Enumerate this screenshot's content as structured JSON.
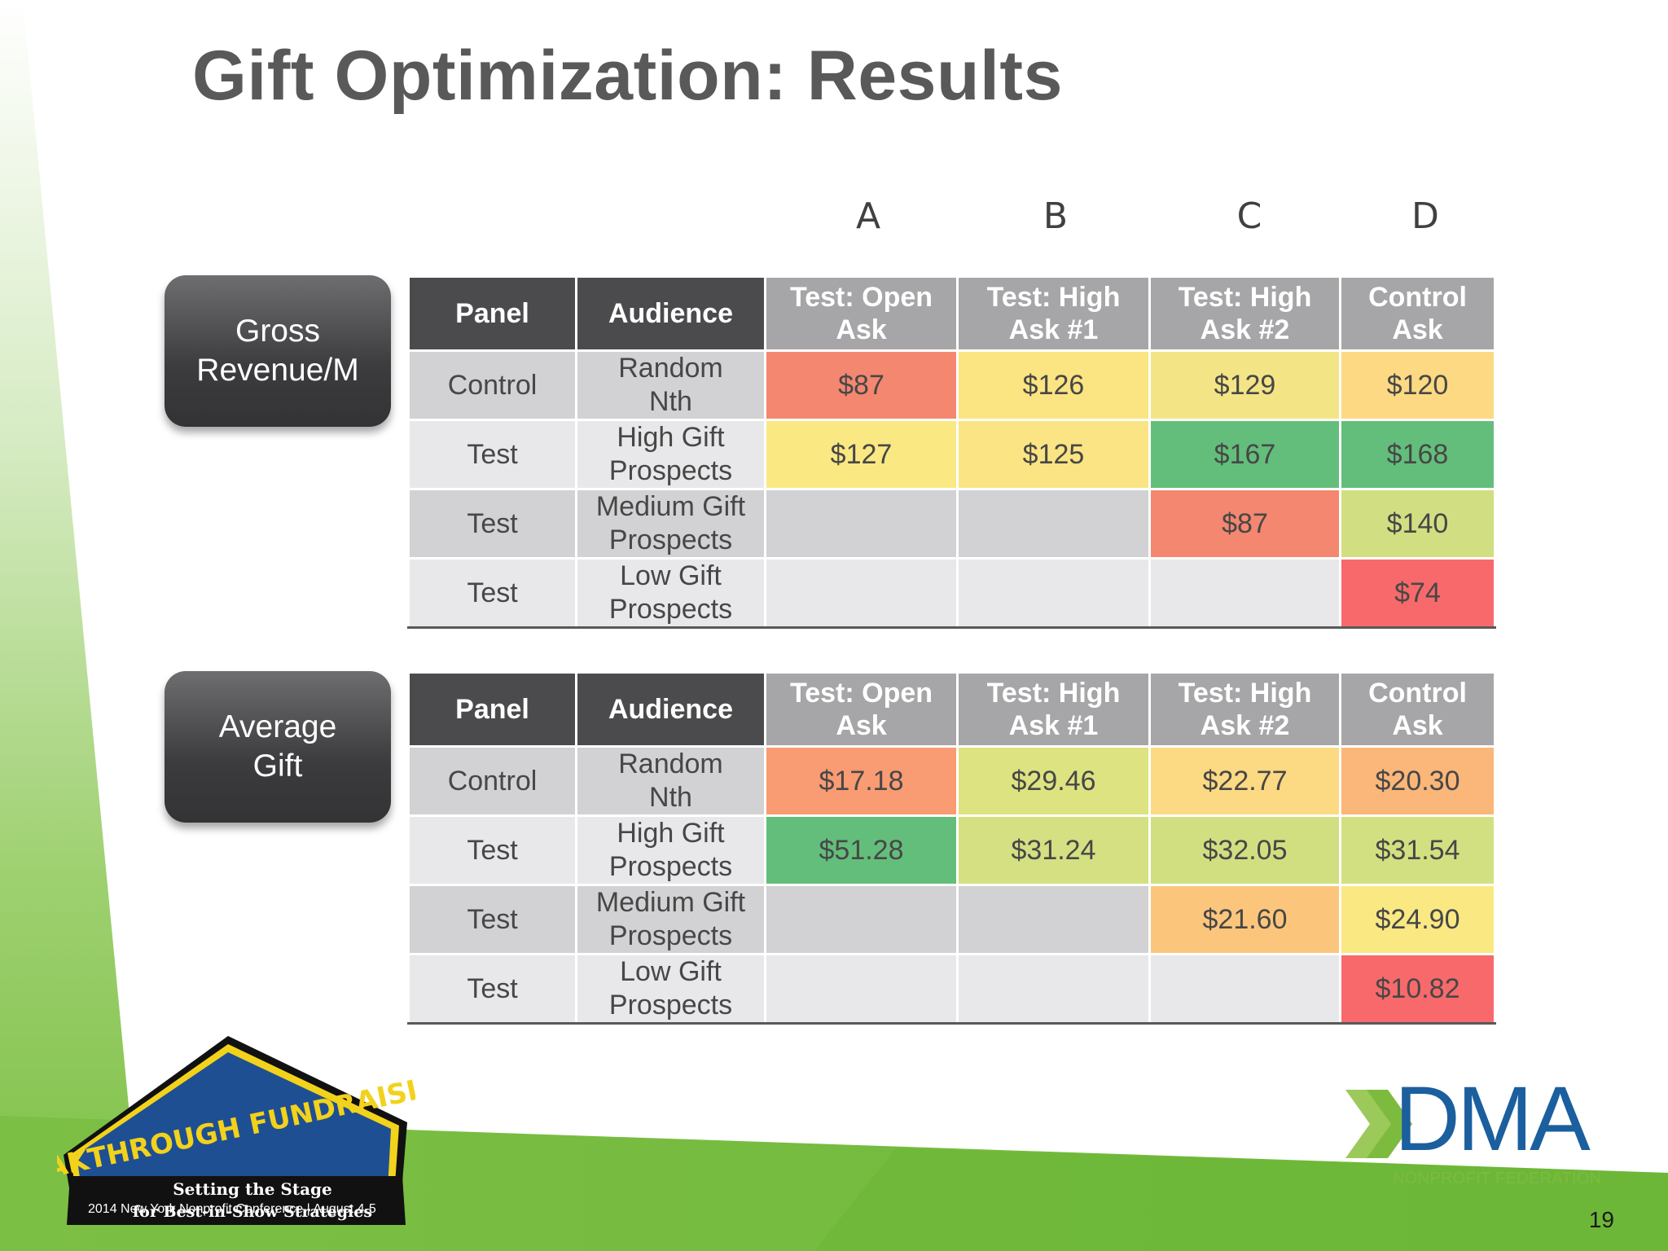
{
  "slide": {
    "title": "Gift Optimization: Results",
    "page_number": "19",
    "column_letters": [
      "A",
      "B",
      "C",
      "D"
    ]
  },
  "tables": [
    {
      "label": "Gross Revenue/M",
      "headers": [
        "Panel",
        "Audience",
        "Test: Open Ask",
        "Test: High Ask #1",
        "Test: High Ask #2",
        "Control Ask"
      ],
      "rows": [
        {
          "panel": "Control",
          "audience": "Random Nth",
          "cells": [
            {
              "value": "$87",
              "color": "#f4876f"
            },
            {
              "value": "$126",
              "color": "#fbe482"
            },
            {
              "value": "$129",
              "color": "#f3e586"
            },
            {
              "value": "$120",
              "color": "#fcd982"
            }
          ]
        },
        {
          "panel": "Test",
          "audience": "High Gift Prospects",
          "cells": [
            {
              "value": "$127",
              "color": "#fae883"
            },
            {
              "value": "$125",
              "color": "#fbe483"
            },
            {
              "value": "$167",
              "color": "#63be7b"
            },
            {
              "value": "$168",
              "color": "#63be7b"
            }
          ]
        },
        {
          "panel": "Test",
          "audience": "Medium Gift Prospects",
          "cells": [
            {
              "value": "",
              "color": ""
            },
            {
              "value": "",
              "color": ""
            },
            {
              "value": "$87",
              "color": "#f4876f"
            },
            {
              "value": "$140",
              "color": "#d1df82"
            }
          ]
        },
        {
          "panel": "Test",
          "audience": "Low Gift Prospects",
          "cells": [
            {
              "value": "",
              "color": ""
            },
            {
              "value": "",
              "color": ""
            },
            {
              "value": "",
              "color": ""
            },
            {
              "value": "$74",
              "color": "#f8696b"
            }
          ]
        }
      ]
    },
    {
      "label": "Average Gift",
      "headers": [
        "Panel",
        "Audience",
        "Test: Open Ask",
        "Test: High Ask #1",
        "Test: High Ask #2",
        "Control Ask"
      ],
      "rows": [
        {
          "panel": "Control",
          "audience": "Random Nth",
          "cells": [
            {
              "value": "$17.18",
              "color": "#f99b73"
            },
            {
              "value": "$29.46",
              "color": "#dde381"
            },
            {
              "value": "$22.77",
              "color": "#fcd983"
            },
            {
              "value": "$20.30",
              "color": "#fbb679"
            }
          ]
        },
        {
          "panel": "Test",
          "audience": "High Gift Prospects",
          "cells": [
            {
              "value": "$51.28",
              "color": "#63be7b"
            },
            {
              "value": "$31.24",
              "color": "#d4e081"
            },
            {
              "value": "$32.05",
              "color": "#d1df81"
            },
            {
              "value": "$31.54",
              "color": "#d3e081"
            }
          ]
        },
        {
          "panel": "Test",
          "audience": "Medium Gift Prospects",
          "cells": [
            {
              "value": "",
              "color": ""
            },
            {
              "value": "",
              "color": ""
            },
            {
              "value": "$21.60",
              "color": "#fbc67c"
            },
            {
              "value": "$24.90",
              "color": "#fae883"
            }
          ]
        },
        {
          "panel": "Test",
          "audience": "Low Gift Prospects",
          "cells": [
            {
              "value": "",
              "color": ""
            },
            {
              "value": "",
              "color": ""
            },
            {
              "value": "",
              "color": ""
            },
            {
              "value": "$10.82",
              "color": "#f8696b"
            }
          ]
        }
      ]
    }
  ],
  "logos": {
    "conference_title": "BREAKTHROUGH FUNDRAISING!",
    "conference_tagline_1": "Setting the Stage",
    "conference_tagline_2": "for Best-in-Show Strategies",
    "conference_subtitle": "2014 New York Nonprofit Conference | August 4-5",
    "dma_name": "DMA",
    "dma_subtitle": "NONPROFIT FEDERATION"
  }
}
